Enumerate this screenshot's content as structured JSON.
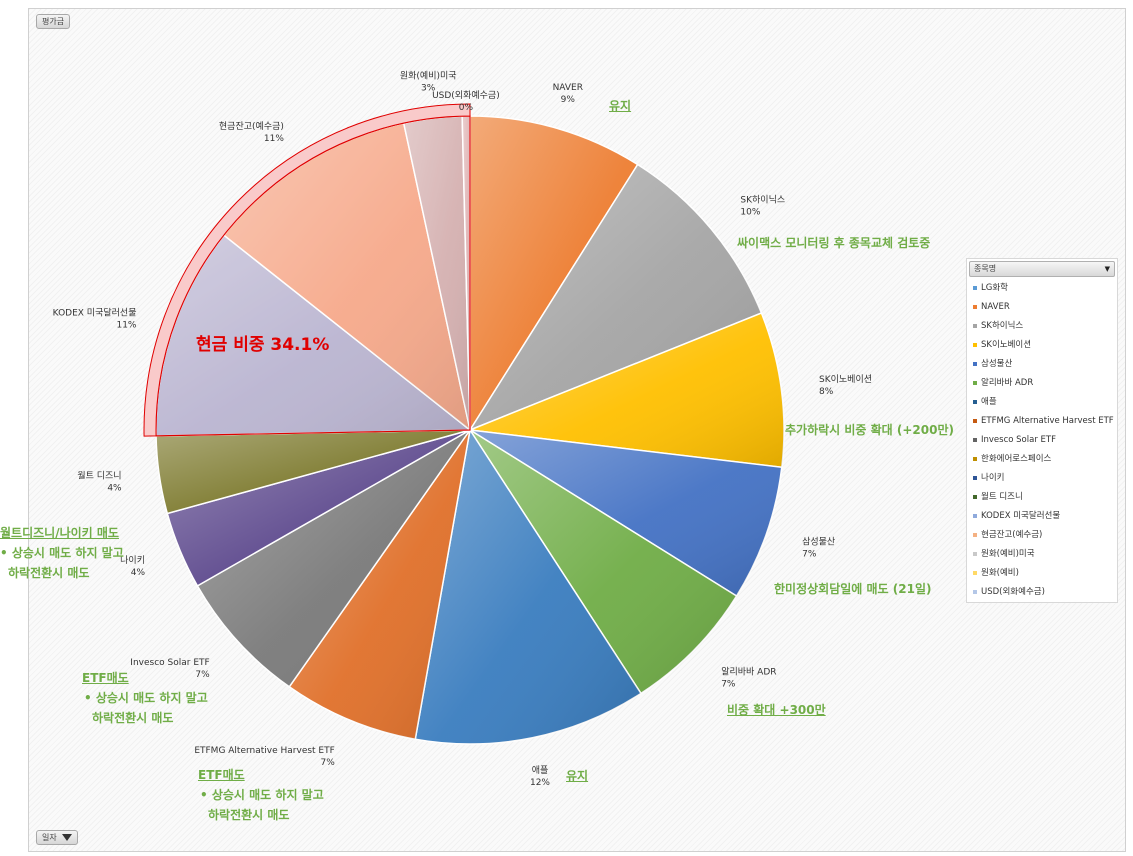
{
  "field_buttons": {
    "value_field": "평가금",
    "date_field": "일자"
  },
  "legend": {
    "title": "종목명",
    "items": [
      {
        "label": "LG화학",
        "color": "#5b9bd5"
      },
      {
        "label": "NAVER",
        "color": "#ed7d31"
      },
      {
        "label": "SK하이닉스",
        "color": "#a5a5a5"
      },
      {
        "label": "SK이노베이션",
        "color": "#ffc000"
      },
      {
        "label": "삼성물산",
        "color": "#4472c4"
      },
      {
        "label": "알리바바 ADR",
        "color": "#70ad47"
      },
      {
        "label": "애플",
        "color": "#255e91"
      },
      {
        "label": "ETFMG Alternative Harvest ETF",
        "color": "#c55a11"
      },
      {
        "label": "Invesco Solar ETF",
        "color": "#636363"
      },
      {
        "label": "한화에어로스페이스",
        "color": "#bf8f00"
      },
      {
        "label": "나이키",
        "color": "#2f5597"
      },
      {
        "label": "월트 디즈니",
        "color": "#43682b"
      },
      {
        "label": "KODEX 미국달러선물",
        "color": "#8faadc"
      },
      {
        "label": "현금잔고(예수금)",
        "color": "#f4b183"
      },
      {
        "label": "원화(예비)미국",
        "color": "#c9c9c9"
      },
      {
        "label": "원화(예비)",
        "color": "#ffd966"
      },
      {
        "label": "USD(외화예수금)",
        "color": "#b4c7e7"
      }
    ]
  },
  "chart_data": {
    "type": "pie",
    "title": "",
    "slices": [
      {
        "name": "NAVER",
        "value": 9,
        "label": "9%",
        "color": "#ed7d31"
      },
      {
        "name": "SK하이닉스",
        "value": 10,
        "label": "10%",
        "color": "#a5a5a5"
      },
      {
        "name": "SK이노베이션",
        "value": 8,
        "label": "8%",
        "color": "#ffc000"
      },
      {
        "name": "삼성물산",
        "value": 7,
        "label": "7%",
        "color": "#4472c4"
      },
      {
        "name": "알리바바 ADR",
        "value": 7,
        "label": "7%",
        "color": "#70ad47"
      },
      {
        "name": "애플",
        "value": 12,
        "label": "12%",
        "color": "#3a7dbf"
      },
      {
        "name": "ETFMG Alternative Harvest ETF",
        "value": 7,
        "label": "7%",
        "color": "#e0702a"
      },
      {
        "name": "Invesco Solar ETF",
        "value": 7,
        "label": "7%",
        "color": "#7a7a7a"
      },
      {
        "name": "나이키",
        "value": 4,
        "label": "4%",
        "color": "#5e4a8e"
      },
      {
        "name": "월트 디즈니",
        "value": 4,
        "label": "4%",
        "color": "#7d7a2e"
      },
      {
        "name": "KODEX 미국달러선물",
        "value": 11,
        "label": "11%",
        "color": "#a7a0c4"
      },
      {
        "name": "현금잔고(예수금)",
        "value": 11,
        "label": "11%",
        "color": "#f4916a"
      },
      {
        "name": "원화(예비)미국",
        "value": 3,
        "label": "3%",
        "color": "#c99a9a"
      },
      {
        "name": "USD(외화예수금)",
        "value": 0.4,
        "label": "0%",
        "color": "#d8a0a0"
      }
    ],
    "cash_highlight": {
      "text": "현금 비중 34.1%",
      "color": "#e00000"
    }
  },
  "annotations": [
    {
      "lines": [
        "유지"
      ]
    },
    {
      "lines": [
        "싸이맥스 모니터링 후 종목교체 검토중"
      ]
    },
    {
      "lines": [
        "추가하락시 비중 확대 (+200만)"
      ]
    },
    {
      "lines": [
        "한미정상회담일에 매도 (21일)"
      ]
    },
    {
      "lines": [
        "비중 확대 +300만"
      ]
    },
    {
      "lines": [
        "유지"
      ]
    },
    {
      "lines": [
        "ETF매도",
        "• 상승시 매도 하지 말고",
        "하락전환시 매도"
      ]
    },
    {
      "lines": [
        "ETF매도",
        "• 상승시 매도 하지 말고",
        "하락전환시 매도"
      ]
    },
    {
      "lines": [
        "월트디즈니/나이키 매도",
        "• 상승시 매도 하지 말고",
        "하락전환시 매도"
      ]
    }
  ]
}
